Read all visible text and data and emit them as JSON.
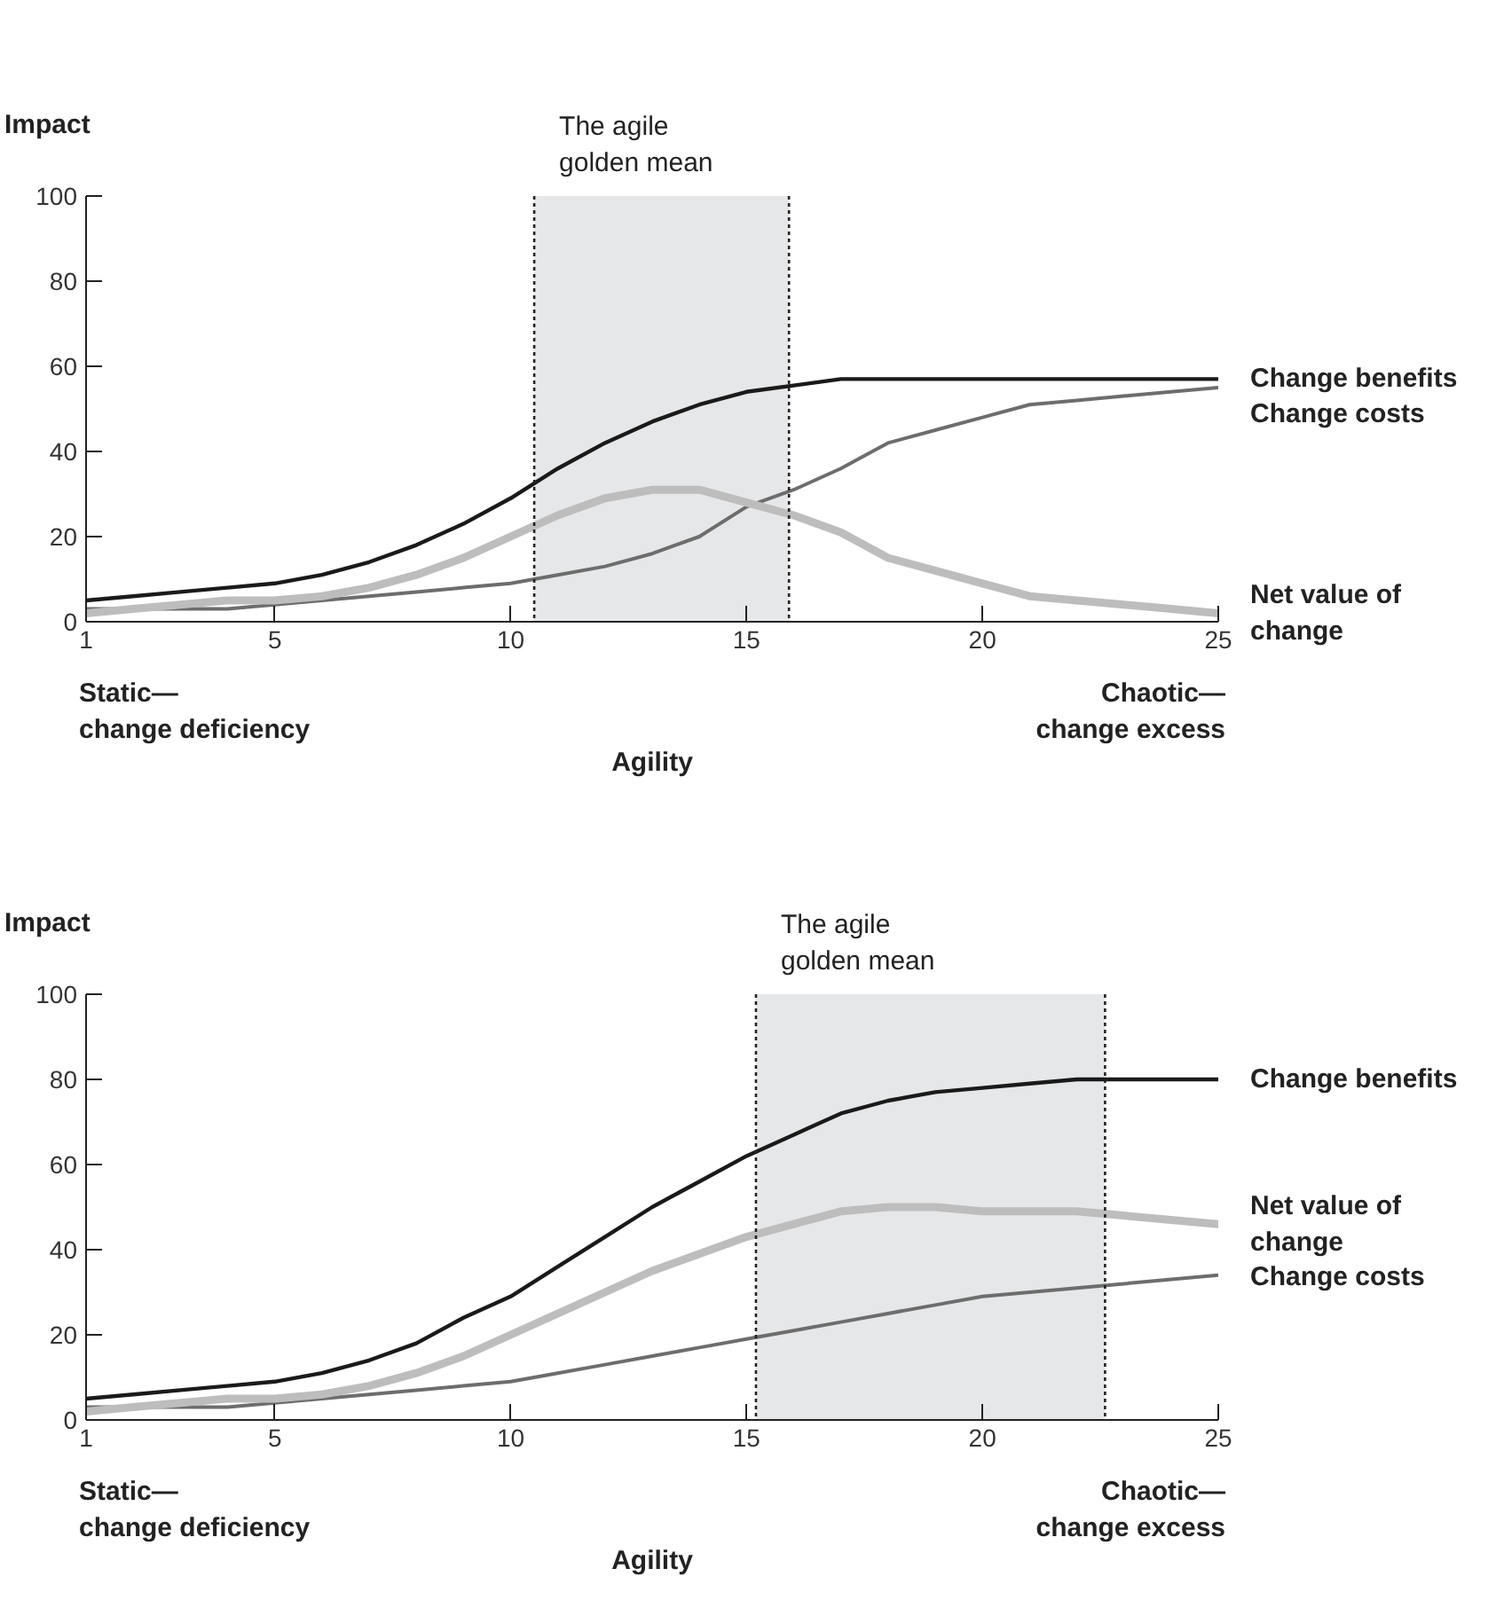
{
  "chart_data": [
    {
      "type": "line",
      "ylabel": "Impact",
      "xlabel": "Agility",
      "x": [
        1,
        2,
        3,
        4,
        5,
        6,
        7,
        8,
        9,
        10,
        11,
        12,
        13,
        14,
        15,
        16,
        17,
        18,
        19,
        20,
        21,
        22,
        23,
        24,
        25
      ],
      "series": [
        {
          "name": "Change benefits",
          "color": "#1a1a1a",
          "values": [
            5,
            6,
            7,
            8,
            9,
            11,
            14,
            18,
            23,
            29,
            36,
            42,
            47,
            51,
            54,
            55.5,
            57,
            57,
            57,
            57,
            57,
            57,
            57,
            57,
            57
          ]
        },
        {
          "name": "Change costs",
          "color": "#6d6d6d",
          "values": [
            3,
            3,
            3,
            3,
            4,
            5,
            6,
            7,
            8,
            9,
            11,
            13,
            16,
            20,
            27,
            31,
            36,
            42,
            45,
            48,
            51,
            52,
            53,
            54,
            55
          ]
        },
        {
          "name": "Net value of change",
          "color": "#bdbdbd",
          "values": [
            2,
            3,
            4,
            5,
            5,
            6,
            8,
            11,
            15,
            20,
            25,
            29,
            31,
            31,
            28,
            25,
            21,
            15,
            12,
            9,
            6,
            5,
            4,
            3,
            2
          ]
        }
      ],
      "bands": [
        {
          "axis": "x",
          "from": 10.5,
          "to": 15.9,
          "label": "The agile golden mean",
          "color": "#e6e7e9"
        }
      ],
      "ref_lines": [
        {
          "axis": "x",
          "value": 10.5,
          "color": "#222222",
          "line_style": "dashed"
        },
        {
          "axis": "x",
          "value": 15.9,
          "color": "#222222",
          "line_style": "dashed"
        }
      ],
      "annotations": [
        "Static—\nchange deficiency",
        "Chaotic—\nchange excess"
      ],
      "xlim": [
        1,
        25
      ],
      "xticks": [
        1,
        5,
        10,
        15,
        20,
        25
      ],
      "ylim": [
        0,
        100
      ],
      "yticks": [
        0,
        20,
        40,
        60,
        80,
        100
      ],
      "grid": false,
      "legend": false,
      "line_style": "solid"
    },
    {
      "type": "line",
      "ylabel": "Impact",
      "xlabel": "Agility",
      "x": [
        1,
        2,
        3,
        4,
        5,
        6,
        7,
        8,
        9,
        10,
        11,
        12,
        13,
        14,
        15,
        16,
        17,
        18,
        19,
        20,
        21,
        22,
        23,
        24,
        25
      ],
      "series": [
        {
          "name": "Change benefits",
          "color": "#1a1a1a",
          "values": [
            5,
            6,
            7,
            8,
            9,
            11,
            14,
            18,
            24,
            29,
            36,
            43,
            50,
            56,
            62,
            67,
            72,
            75,
            77,
            78,
            79,
            80,
            80,
            80,
            80
          ]
        },
        {
          "name": "Change costs",
          "color": "#6d6d6d",
          "values": [
            3,
            3,
            3,
            3,
            4,
            5,
            6,
            7,
            8,
            9,
            11,
            13,
            15,
            17,
            19,
            21,
            23,
            25,
            27,
            29,
            30,
            31,
            32,
            33,
            34
          ]
        },
        {
          "name": "Net value of change",
          "color": "#bdbdbd",
          "values": [
            2,
            3,
            4,
            5,
            5,
            6,
            8,
            11,
            15,
            20,
            25,
            30,
            35,
            39,
            43,
            46,
            49,
            50,
            50,
            49,
            49,
            49,
            48,
            47,
            46
          ]
        }
      ],
      "bands": [
        {
          "axis": "x",
          "from": 15.2,
          "to": 22.6,
          "label": "The agile golden mean",
          "color": "#e6e7e9"
        }
      ],
      "ref_lines": [
        {
          "axis": "x",
          "value": 15.2,
          "color": "#222222",
          "line_style": "dashed"
        },
        {
          "axis": "x",
          "value": 22.6,
          "color": "#222222",
          "line_style": "dashed"
        }
      ],
      "annotations": [
        "Static—\nchange deficiency",
        "Chaotic—\nchange excess"
      ],
      "xlim": [
        1,
        25
      ],
      "xticks": [
        1,
        5,
        10,
        15,
        20,
        25
      ],
      "ylim": [
        0,
        100
      ],
      "yticks": [
        0,
        20,
        40,
        60,
        80,
        100
      ],
      "grid": false,
      "legend": false,
      "line_style": "solid"
    }
  ]
}
